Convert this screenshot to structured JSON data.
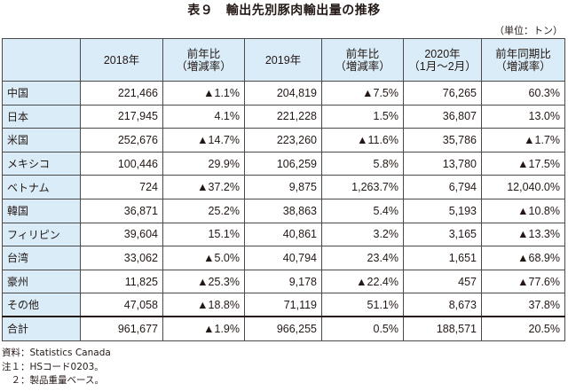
{
  "title": "表９　輸出先別豚肉輸出量の推移",
  "unit": "（単位：トン）",
  "headers": {
    "y2018": "2018年",
    "ratio2018": [
      "前年比",
      "（増減率）"
    ],
    "y2019": "2019年",
    "ratio2019": [
      "前年比",
      "（増減率）"
    ],
    "y2020": [
      "2020年",
      "（1月〜2月）"
    ],
    "ratio2020": [
      "前年同期比",
      "（増減率）"
    ]
  },
  "rows": [
    {
      "name": "中国",
      "v2018": "221,466",
      "r2018": "▲1.1%",
      "v2019": "204,819",
      "r2019": "▲7.5%",
      "v2020": "76,265",
      "r2020": "60.3%"
    },
    {
      "name": "日本",
      "v2018": "217,945",
      "r2018": "4.1%",
      "v2019": "221,228",
      "r2019": "1.5%",
      "v2020": "36,807",
      "r2020": "13.0%"
    },
    {
      "name": "米国",
      "v2018": "252,676",
      "r2018": "▲14.7%",
      "v2019": "223,260",
      "r2019": "▲11.6%",
      "v2020": "35,786",
      "r2020": "▲1.7%"
    },
    {
      "name": "メキシコ",
      "v2018": "100,446",
      "r2018": "29.9%",
      "v2019": "106,259",
      "r2019": "5.8%",
      "v2020": "13,780",
      "r2020": "▲17.5%"
    },
    {
      "name": "ベトナム",
      "v2018": "724",
      "r2018": "▲37.2%",
      "v2019": "9,875",
      "r2019": "1,263.7%",
      "v2020": "6,794",
      "r2020": "12,040.0%"
    },
    {
      "name": "韓国",
      "v2018": "36,871",
      "r2018": "25.2%",
      "v2019": "38,863",
      "r2019": "5.4%",
      "v2020": "5,193",
      "r2020": "▲10.8%"
    },
    {
      "name": "フィリピン",
      "v2018": "39,604",
      "r2018": "15.1%",
      "v2019": "40,861",
      "r2019": "3.2%",
      "v2020": "3,165",
      "r2020": "▲13.3%"
    },
    {
      "name": "台湾",
      "v2018": "33,062",
      "r2018": "▲5.0%",
      "v2019": "40,794",
      "r2019": "23.4%",
      "v2020": "1,651",
      "r2020": "▲68.9%"
    },
    {
      "name": "豪州",
      "v2018": "11,825",
      "r2018": "▲25.3%",
      "v2019": "9,178",
      "r2019": "▲22.4%",
      "v2020": "457",
      "r2020": "▲77.6%"
    },
    {
      "name": "その他",
      "v2018": "47,058",
      "r2018": "▲18.8%",
      "v2019": "71,119",
      "r2019": "51.1%",
      "v2020": "8,673",
      "r2020": "37.8%"
    }
  ],
  "total": {
    "name": "合計",
    "v2018": "961,677",
    "r2018": "▲1.9%",
    "v2019": "966,255",
    "r2019": "0.5%",
    "v2020": "188,571",
    "r2020": "20.5%"
  },
  "notes": {
    "source": "資料：Statistics Canada",
    "note1": "注１：HSコード0203。",
    "note2": "　２：製品重量ベース。"
  }
}
